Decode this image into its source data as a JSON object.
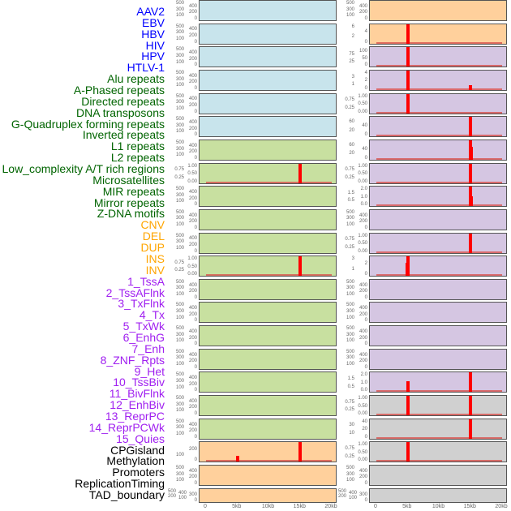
{
  "labels": [
    {
      "t": "AAV2",
      "c": "#0000ff"
    },
    {
      "t": "EBV",
      "c": "#0000ff"
    },
    {
      "t": "HBV",
      "c": "#0000ff"
    },
    {
      "t": "HIV",
      "c": "#0000ff"
    },
    {
      "t": "HPV",
      "c": "#0000ff"
    },
    {
      "t": "HTLV-1",
      "c": "#0000ff"
    },
    {
      "t": "Alu repeats",
      "c": "#006400"
    },
    {
      "t": "A-Phased repeats",
      "c": "#006400"
    },
    {
      "t": "Directed repeats",
      "c": "#006400"
    },
    {
      "t": "DNA transposons",
      "c": "#006400"
    },
    {
      "t": "G-Quadruplex forming repeats",
      "c": "#006400"
    },
    {
      "t": "Inverted repeats",
      "c": "#006400"
    },
    {
      "t": "L1 repeats",
      "c": "#006400"
    },
    {
      "t": "L2 repeats",
      "c": "#006400"
    },
    {
      "t": "Low_complexity A/T rich regions",
      "c": "#006400"
    },
    {
      "t": "Microsatellites",
      "c": "#006400"
    },
    {
      "t": "MIR repeats",
      "c": "#006400"
    },
    {
      "t": "Mirror repeats",
      "c": "#006400"
    },
    {
      "t": "Z-DNA motifs",
      "c": "#006400"
    },
    {
      "t": "CNV",
      "c": "#ffa500"
    },
    {
      "t": "DEL",
      "c": "#ffa500"
    },
    {
      "t": "DUP",
      "c": "#ffa500"
    },
    {
      "t": "INS",
      "c": "#ffa500"
    },
    {
      "t": "INV",
      "c": "#ffa500"
    },
    {
      "t": "1_TssA",
      "c": "#a020f0"
    },
    {
      "t": "2_TssAFlnk",
      "c": "#a020f0"
    },
    {
      "t": "3_TxFlnk",
      "c": "#a020f0"
    },
    {
      "t": "4_Tx",
      "c": "#a020f0"
    },
    {
      "t": "5_TxWk",
      "c": "#a020f0"
    },
    {
      "t": "6_EnhG",
      "c": "#a020f0"
    },
    {
      "t": "7_Enh",
      "c": "#a020f0"
    },
    {
      "t": "8_ZNF_Rpts",
      "c": "#a020f0"
    },
    {
      "t": "9_Het",
      "c": "#a020f0"
    },
    {
      "t": "10_TssBiv",
      "c": "#a020f0"
    },
    {
      "t": "11_BivFlnk",
      "c": "#a020f0"
    },
    {
      "t": "12_EnhBiv",
      "c": "#a020f0"
    },
    {
      "t": "13_ReprPC",
      "c": "#a020f0"
    },
    {
      "t": "14_ReprPCWk",
      "c": "#a020f0"
    },
    {
      "t": "15_Quies",
      "c": "#a020f0"
    },
    {
      "t": "CPGisland",
      "c": "#000000"
    },
    {
      "t": "Methylation",
      "c": "#000000"
    },
    {
      "t": "Promoters",
      "c": "#000000"
    },
    {
      "t": "ReplicationTiming",
      "c": "#000000"
    },
    {
      "t": "TAD_boundary",
      "c": "#000000"
    }
  ],
  "chart_data": {
    "type": "bar",
    "xlabel": "",
    "x_ticks": [
      "0",
      "5kb",
      "10kb",
      "15kb",
      "20kb"
    ],
    "xlim": [
      0,
      20000
    ],
    "colors": {
      "blue": "#c8e4ec",
      "green": "#c8e0a0",
      "orange": "#ffd09c",
      "purple": "#d5c6e2",
      "gray": "#d0d0d0",
      "bar": "#ff0000"
    },
    "columns": [
      {
        "name": "left",
        "panels": [
          {
            "bg": "blue",
            "ticks": [
              "0",
              "100",
              "200",
              "300",
              "400",
              "500"
            ],
            "ymax": 500,
            "bars": []
          },
          {
            "bg": "blue",
            "ticks": [
              "0",
              "100",
              "200",
              "300",
              "400",
              "500"
            ],
            "ymax": 500,
            "bars": []
          },
          {
            "bg": "blue",
            "ticks": [
              "0",
              "100",
              "200",
              "300",
              "400",
              "500"
            ],
            "ymax": 500,
            "bars": []
          },
          {
            "bg": "blue",
            "ticks": [
              "0",
              "100",
              "200",
              "300",
              "400",
              "500"
            ],
            "ymax": 500,
            "bars": []
          },
          {
            "bg": "blue",
            "ticks": [
              "0",
              "100",
              "200",
              "300",
              "400",
              "500"
            ],
            "ymax": 500,
            "bars": []
          },
          {
            "bg": "blue",
            "ticks": [
              "0",
              "100",
              "200",
              "300",
              "400",
              "500"
            ],
            "ymax": 500,
            "bars": []
          },
          {
            "bg": "green",
            "ticks": [
              "0",
              "100",
              "200",
              "300",
              "400",
              "500"
            ],
            "ymax": 500,
            "bars": []
          },
          {
            "bg": "green",
            "ticks": [
              "0.00",
              "0.25",
              "0.50",
              "0.75",
              "1.00"
            ],
            "ymax": 1,
            "bars": [
              [
                15000,
                1
              ]
            ]
          },
          {
            "bg": "green",
            "ticks": [
              "0",
              "100",
              "200",
              "300",
              "400",
              "500"
            ],
            "ymax": 500,
            "bars": []
          },
          {
            "bg": "green",
            "ticks": [
              "0",
              "100",
              "200",
              "300",
              "400",
              "500"
            ],
            "ymax": 500,
            "bars": []
          },
          {
            "bg": "green",
            "ticks": [
              "0",
              "100",
              "200",
              "300",
              "400",
              "500"
            ],
            "ymax": 500,
            "bars": []
          },
          {
            "bg": "green",
            "ticks": [
              "0.00",
              "0.25",
              "0.50",
              "0.75",
              "1.00"
            ],
            "ymax": 1,
            "bars": [
              [
                15000,
                1
              ]
            ]
          },
          {
            "bg": "green",
            "ticks": [
              "0",
              "100",
              "200",
              "300",
              "400",
              "500"
            ],
            "ymax": 500,
            "bars": []
          },
          {
            "bg": "green",
            "ticks": [
              "0",
              "100",
              "200",
              "300",
              "400",
              "500"
            ],
            "ymax": 500,
            "bars": []
          },
          {
            "bg": "green",
            "ticks": [
              "0",
              "100",
              "200",
              "300",
              "400",
              "500"
            ],
            "ymax": 500,
            "bars": []
          },
          {
            "bg": "green",
            "ticks": [
              "0",
              "100",
              "200",
              "300",
              "400",
              "500"
            ],
            "ymax": 500,
            "bars": []
          },
          {
            "bg": "green",
            "ticks": [
              "0",
              "100",
              "200",
              "300",
              "400",
              "500"
            ],
            "ymax": 500,
            "bars": []
          },
          {
            "bg": "green",
            "ticks": [
              "0",
              "100",
              "200",
              "300",
              "400",
              "500"
            ],
            "ymax": 500,
            "bars": []
          },
          {
            "bg": "green",
            "ticks": [
              "0",
              "100",
              "200",
              "300",
              "400",
              "500"
            ],
            "ymax": 500,
            "bars": []
          },
          {
            "bg": "orange",
            "ticks": [
              "0",
              "100",
              "200"
            ],
            "ymax": 280,
            "bars": [
              [
                5000,
                90
              ],
              [
                15000,
                280
              ]
            ]
          },
          {
            "bg": "orange",
            "ticks": [
              "0",
              "100",
              "200",
              "300",
              "400",
              "500"
            ],
            "ymax": 500,
            "bars": []
          },
          {
            "bg": "orange",
            "ticks": [
              "0",
              "100",
              "200",
              "300",
              "400",
              "500"
            ],
            "ymax": 500,
            "bars": []
          }
        ]
      },
      {
        "name": "right",
        "panels": [
          {
            "bg": "orange",
            "ticks": [
              "0",
              "100",
              "200",
              "300",
              "400",
              "500"
            ],
            "ymax": 500,
            "bars": []
          },
          {
            "bg": "orange",
            "ticks": [
              "0",
              "2",
              "4",
              "6"
            ],
            "ymax": 6,
            "bars": [
              [
                5000,
                6
              ]
            ]
          },
          {
            "bg": "purple",
            "ticks": [
              "0",
              "25",
              "50",
              "75",
              "100"
            ],
            "ymax": 110,
            "bars": [
              [
                5000,
                110
              ]
            ]
          },
          {
            "bg": "purple",
            "ticks": [
              "0",
              "1",
              "2",
              "3",
              "4"
            ],
            "ymax": 4,
            "bars": [
              [
                5000,
                4
              ],
              [
                15000,
                1
              ]
            ]
          },
          {
            "bg": "purple",
            "ticks": [
              "0.00",
              "0.25",
              "0.50",
              "0.75",
              "1.00"
            ],
            "ymax": 1,
            "bars": [
              [
                5000,
                1
              ]
            ]
          },
          {
            "bg": "purple",
            "ticks": [
              "0",
              "20",
              "40",
              "60"
            ],
            "ymax": 70,
            "bars": [
              [
                15000,
                70
              ]
            ]
          },
          {
            "bg": "purple",
            "ticks": [
              "0",
              "20",
              "40",
              "60"
            ],
            "ymax": 70,
            "bars": [
              [
                15000,
                70
              ],
              [
                15100,
                45
              ]
            ]
          },
          {
            "bg": "purple",
            "ticks": [
              "0.00",
              "0.25",
              "0.50",
              "0.75",
              "1.00"
            ],
            "ymax": 1,
            "bars": [
              [
                15000,
                1
              ]
            ]
          },
          {
            "bg": "purple",
            "ticks": [
              "0.0",
              "0.5",
              "1.0",
              "1.5",
              "2.0"
            ],
            "ymax": 2,
            "bars": [
              [
                15000,
                2
              ],
              [
                15100,
                1
              ]
            ]
          },
          {
            "bg": "purple",
            "ticks": [
              "0",
              "100",
              "200",
              "300",
              "400",
              "500"
            ],
            "ymax": 500,
            "bars": []
          },
          {
            "bg": "purple",
            "ticks": [
              "0.00",
              "0.25",
              "0.50",
              "0.75",
              "1.00"
            ],
            "ymax": 1,
            "bars": [
              [
                15000,
                1
              ]
            ]
          },
          {
            "bg": "purple",
            "ticks": [
              "0",
              "1",
              "2",
              "3"
            ],
            "ymax": 3,
            "bars": [
              [
                4950,
                2
              ],
              [
                5050,
                3
              ]
            ]
          },
          {
            "bg": "purple",
            "ticks": [
              "0",
              "100",
              "200",
              "300",
              "400",
              "500"
            ],
            "ymax": 500,
            "bars": []
          },
          {
            "bg": "purple",
            "ticks": [
              "0",
              "100",
              "200",
              "300",
              "400",
              "500"
            ],
            "ymax": 500,
            "bars": []
          },
          {
            "bg": "purple",
            "ticks": [
              "0",
              "100",
              "200",
              "300",
              "400",
              "500"
            ],
            "ymax": 500,
            "bars": []
          },
          {
            "bg": "purple",
            "ticks": [
              "0",
              "100",
              "200",
              "300",
              "400",
              "500"
            ],
            "ymax": 500,
            "bars": []
          },
          {
            "bg": "purple",
            "ticks": [
              "0.0",
              "0.5",
              "1.0",
              "1.5",
              "2.0"
            ],
            "ymax": 2,
            "bars": [
              [
                5000,
                1.1
              ],
              [
                15000,
                2
              ]
            ]
          },
          {
            "bg": "gray",
            "ticks": [
              "0.00",
              "0.25",
              "0.50",
              "0.75",
              "1.00"
            ],
            "ymax": 1,
            "bars": [
              [
                5000,
                1
              ],
              [
                15000,
                1
              ]
            ]
          },
          {
            "bg": "gray",
            "ticks": [
              "0",
              "10",
              "20",
              "30",
              "40"
            ],
            "ymax": 40,
            "bars": [
              [
                15000,
                40
              ]
            ]
          },
          {
            "bg": "gray",
            "ticks": [
              "0.00",
              "0.25",
              "0.50",
              "0.75",
              "1.00"
            ],
            "ymax": 1,
            "bars": [
              [
                5000,
                1
              ]
            ]
          },
          {
            "bg": "gray",
            "ticks": [
              "0",
              "100",
              "200",
              "300",
              "400",
              "500"
            ],
            "ymax": 500,
            "bars": []
          },
          {
            "bg": "gray",
            "ticks": [
              "0",
              "100",
              "200",
              "300",
              "400",
              "500"
            ],
            "ymax": 500,
            "bars": []
          }
        ]
      }
    ]
  }
}
